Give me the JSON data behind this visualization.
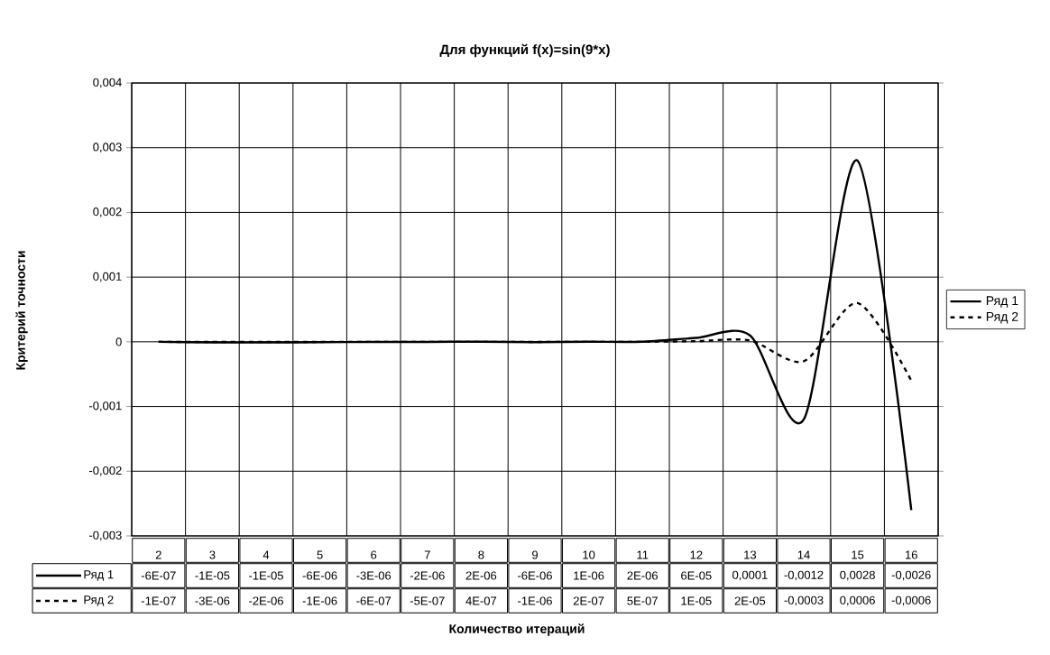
{
  "chart_data": {
    "type": "line",
    "title": "Для функций f(x)=sin(9*x)",
    "annotations": [
      "Количество итераций"
    ],
    "ylabel": "Критерий точности",
    "categories": [
      "2",
      "3",
      "4",
      "5",
      "6",
      "7",
      "8",
      "9",
      "10",
      "11",
      "12",
      "13",
      "14",
      "15",
      "16"
    ],
    "series": [
      {
        "name": "Ряд 1",
        "color": "#000000",
        "line_style": "solid",
        "values": [
          -6e-07,
          -1e-05,
          -1e-05,
          -6e-06,
          -3e-06,
          -2e-06,
          2e-06,
          -6e-06,
          1e-06,
          2e-06,
          6e-05,
          0.0001,
          -0.0012,
          0.0028,
          -0.0026
        ],
        "value_labels": [
          "-6E-07",
          "-1E-05",
          "-1E-05",
          "-6E-06",
          "-3E-06",
          "-2E-06",
          "2E-06",
          "-6E-06",
          "1E-06",
          "2E-06",
          "6E-05",
          "0,0001",
          "-0,0012",
          "0,0028",
          "-0,0026"
        ]
      },
      {
        "name": "Ряд 2",
        "color": "#000000",
        "line_style": "dashed",
        "values": [
          -1e-07,
          -3e-06,
          -2e-06,
          -1e-06,
          -6e-07,
          -5e-07,
          4e-07,
          -1e-06,
          2e-07,
          5e-07,
          1e-05,
          2e-05,
          -0.0003,
          0.0006,
          -0.0006
        ],
        "value_labels": [
          "-1E-07",
          "-3E-06",
          "-2E-06",
          "-1E-06",
          "-6E-07",
          "-5E-07",
          "4E-07",
          "-1E-06",
          "2E-07",
          "5E-07",
          "1E-05",
          "2E-05",
          "-0,0003",
          "0,0006",
          "-0,0006"
        ]
      }
    ],
    "ylim": [
      -0.003,
      0.004
    ],
    "yticks": [
      {
        "value": -0.003,
        "label": "-0,003"
      },
      {
        "value": -0.002,
        "label": "-0,002"
      },
      {
        "value": -0.001,
        "label": "-0,001"
      },
      0,
      {
        "value": 0.001,
        "label": "0,001"
      },
      {
        "value": 0.002,
        "label": "0,002"
      },
      {
        "value": 0.003,
        "label": "0,003"
      },
      {
        "value": 0.004,
        "label": "0,004"
      }
    ],
    "grid": true,
    "legend": "right"
  }
}
